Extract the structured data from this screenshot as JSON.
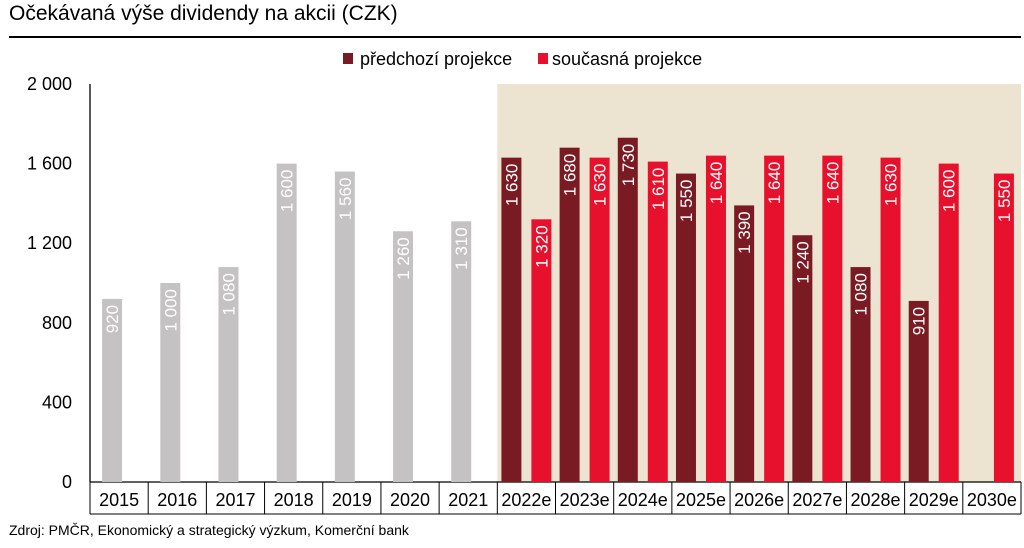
{
  "title": "Očekávaná výše dividendy na akcii (CZK)",
  "source": "Zdroj: PMČR, Ekonomický a strategický výzkum, Komerční bank",
  "colors": {
    "historical": "#c5c2c3",
    "previous": "#7a1b24",
    "current": "#e8112d",
    "forecast_bg": "#ece4d0"
  },
  "chart_data": {
    "type": "bar",
    "categories": [
      "2015",
      "2016",
      "2017",
      "2018",
      "2019",
      "2020",
      "2021",
      "2022e",
      "2023e",
      "2024e",
      "2025e",
      "2026e",
      "2027e",
      "2028e",
      "2029e",
      "2030e"
    ],
    "series": [
      {
        "name": "",
        "values": [
          920,
          1000,
          1080,
          1600,
          1560,
          1260,
          1310,
          null,
          null,
          null,
          null,
          null,
          null,
          null,
          null,
          null
        ],
        "labels": [
          "920",
          "1 000",
          "1 080",
          "1 600",
          "1 560",
          "1 260",
          "1 310",
          "",
          "",
          "",
          "",
          "",
          "",
          "",
          "",
          ""
        ]
      },
      {
        "name": "předchozí projekce",
        "values": [
          null,
          null,
          null,
          null,
          null,
          null,
          null,
          1630,
          1680,
          1730,
          1550,
          1390,
          1240,
          1080,
          910,
          null
        ],
        "labels": [
          "",
          "",
          "",
          "",
          "",
          "",
          "",
          "1 630",
          "1 680",
          "1 730",
          "1 550",
          "1 390",
          "1 240",
          "1 080",
          "910",
          ""
        ]
      },
      {
        "name": "současná projekce",
        "values": [
          null,
          null,
          null,
          null,
          null,
          null,
          null,
          1320,
          1630,
          1610,
          1640,
          1640,
          1640,
          1630,
          1600,
          1550
        ],
        "labels": [
          "",
          "",
          "",
          "",
          "",
          "",
          "",
          "1 320",
          "1 630",
          "1 610",
          "1 640",
          "1 640",
          "1 640",
          "1 630",
          "1 600",
          "1 550"
        ]
      }
    ],
    "ylim": [
      0,
      2000
    ],
    "yticks": [
      0,
      400,
      800,
      1200,
      1600,
      2000
    ],
    "ytick_labels": [
      "0",
      "400",
      "800",
      "1 200",
      "1 600",
      "2 000"
    ],
    "forecast_start_index": 7,
    "legend": {
      "position": "top-center"
    },
    "grid": false
  }
}
